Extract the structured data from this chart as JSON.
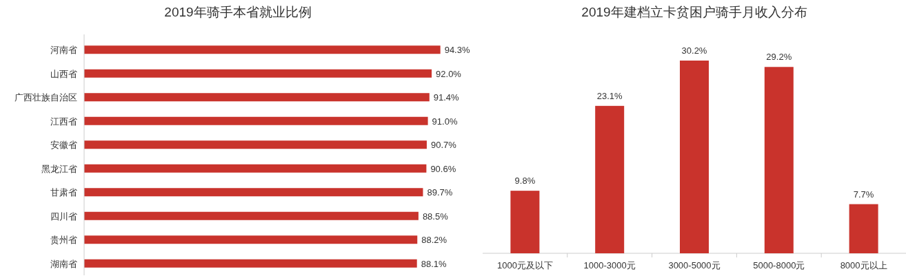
{
  "chart_data": [
    {
      "type": "bar",
      "orientation": "horizontal",
      "title": "2019年骑手本省就业比例",
      "categories": [
        "河南省",
        "山西省",
        "广西壮族自治区",
        "江西省",
        "安徽省",
        "黑龙江省",
        "甘肃省",
        "四川省",
        "贵州省",
        "湖南省"
      ],
      "values": [
        94.3,
        92.0,
        91.4,
        91.0,
        90.7,
        90.6,
        89.7,
        88.5,
        88.2,
        88.1
      ],
      "value_labels": [
        "94.3%",
        "92.0%",
        "91.4%",
        "91.0%",
        "90.7%",
        "90.6%",
        "89.7%",
        "88.5%",
        "88.2%",
        "88.1%"
      ],
      "color": "#c9332c"
    },
    {
      "type": "bar",
      "title": "2019年建档立卡贫困户骑手月收入分布",
      "categories": [
        "1000元及以下",
        "1000-3000元",
        "3000-5000元",
        "5000-8000元",
        "8000元以上"
      ],
      "values": [
        9.8,
        23.1,
        30.2,
        29.2,
        7.7
      ],
      "value_labels": [
        "9.8%",
        "23.1%",
        "30.2%",
        "29.2%",
        "7.7%"
      ],
      "color": "#c9332c"
    }
  ]
}
